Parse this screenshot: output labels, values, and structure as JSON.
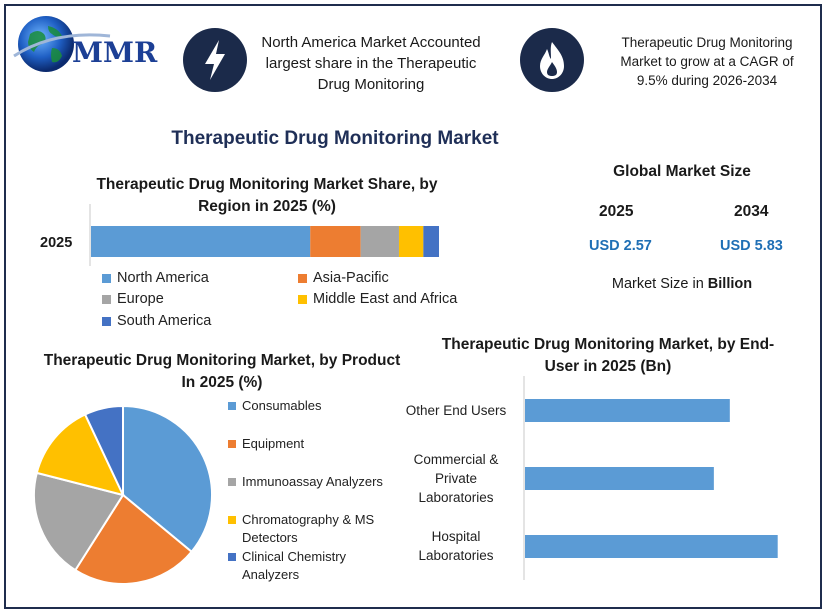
{
  "header": {
    "logo_text": "MMR",
    "highlight_left": "North America Market Accounted largest share in the Therapeutic Drug Monitoring",
    "highlight_right": "Therapeutic Drug Monitoring Market to grow at a CAGR of 9.5% during 2026-2034",
    "left_icon": "lightning-icon",
    "right_icon": "flame-icon"
  },
  "main_title": "Therapeutic Drug Monitoring Market",
  "global_market": {
    "title": "Global Market Size",
    "year_1": "2025",
    "value_1": "USD 2.57",
    "year_2": "2034",
    "value_2": "USD 5.83",
    "note_prefix": "Market Size in ",
    "note_bold": "Billion"
  },
  "colors": {
    "blue": "#5b9bd5",
    "orange": "#ed7d31",
    "gray": "#a5a5a5",
    "yellow": "#ffc000",
    "dark_blue": "#4472c4",
    "navy": "#1f2f57",
    "value_blue": "#1f6fb5"
  },
  "chart_data": [
    {
      "type": "bar",
      "orientation": "horizontal",
      "stacked": true,
      "title": "Therapeutic Drug Monitoring Market Share, by Region in 2025 (%)",
      "categories": [
        "2025"
      ],
      "series": [
        {
          "name": "North America",
          "values": [
            63
          ]
        },
        {
          "name": "Asia-Pacific",
          "values": [
            14.5
          ]
        },
        {
          "name": "Europe",
          "values": [
            11
          ]
        },
        {
          "name": "Middle East and Africa",
          "values": [
            7
          ]
        },
        {
          "name": "South America",
          "values": [
            4.5
          ]
        }
      ],
      "xlim": [
        0,
        100
      ],
      "legend": "bottom",
      "grid": false
    },
    {
      "type": "pie",
      "title": "Therapeutic Drug Monitoring Market, by Product In 2025 (%)",
      "labels": [
        "Consumables",
        "Equipment",
        "Immunoassay Analyzers",
        "Chromatography & MS Detectors",
        "Clinical Chemistry Analyzers"
      ],
      "values": [
        36,
        23,
        20,
        14,
        7
      ],
      "legend": "right"
    },
    {
      "type": "bar",
      "orientation": "horizontal",
      "title": "Therapeutic Drug Monitoring Market, by End-User in 2025 (Bn)",
      "categories": [
        "Other End Users",
        "Commercial & Private Laboratories",
        "Hospital Laboratories"
      ],
      "category_lines": [
        [
          "Other End Users"
        ],
        [
          "Commercial &",
          "Private",
          "Laboratories"
        ],
        [
          "Hospital",
          "Laboratories"
        ]
      ],
      "values": [
        0.77,
        0.71,
        0.95
      ],
      "xlim": [
        0,
        1.0
      ],
      "grid": false
    }
  ]
}
